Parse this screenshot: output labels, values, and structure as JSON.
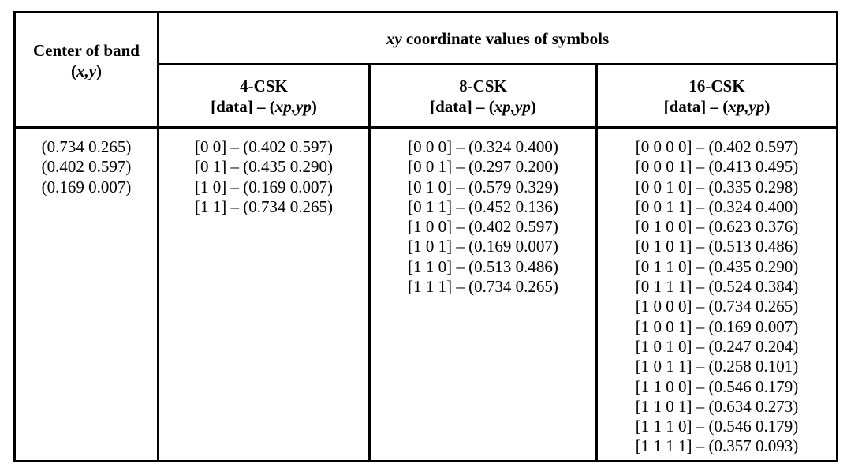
{
  "header": {
    "center_of_band": {
      "title": "Center of band",
      "coords": [
        "(",
        "x,y",
        ")"
      ]
    },
    "group_title": [
      "xy",
      "coordinate values of symbols"
    ],
    "columns": [
      {
        "title": "4-CSK",
        "subtitle": [
          "[data] – (",
          "xp,yp",
          ")"
        ]
      },
      {
        "title": "8-CSK",
        "subtitle": [
          "[data] – (",
          "xp,yp",
          ")"
        ]
      },
      {
        "title": "16-CSK",
        "subtitle": [
          "[data] – (",
          "xp,yp",
          ")"
        ]
      }
    ]
  },
  "body": {
    "center_of_band": [
      "(0.734 0.265)",
      "(0.402 0.597)",
      "(0.169 0.007)"
    ],
    "columns": [
      [
        "[0 0] – (0.402 0.597)",
        "[0 1] – (0.435 0.290)",
        "[1 0] – (0.169 0.007)",
        "[1 1] – (0.734 0.265)"
      ],
      [
        "[0 0 0] – (0.324 0.400)",
        "[0 0 1] – (0.297 0.200)",
        "[0 1 0] – (0.579 0.329)",
        "[0 1 1] – (0.452 0.136)",
        "[1 0 0] – (0.402 0.597)",
        "[1 0 1] – (0.169 0.007)",
        "[1 1 0] – (0.513 0.486)",
        "[1 1 1] – (0.734 0.265)"
      ],
      [
        "[0 0 0 0] – (0.402 0.597)",
        "[0 0 0 1] – (0.413 0.495)",
        "[0 0 1 0] – (0.335 0.298)",
        "[0 0 1 1] – (0.324 0.400)",
        "[0 1 0 0] – (0.623 0.376)",
        "[0 1 0 1] – (0.513 0.486)",
        "[0 1 1 0] – (0.435 0.290)",
        "[0 1 1 1] – (0.524 0.384)",
        "[1 0 0 0] – (0.734 0.265)",
        "[1 0 0 1] – (0.169 0.007)",
        "[1 0 1 0] – (0.247 0.204)",
        "[1 0 1 1] – (0.258 0.101)",
        "[1 1 0 0] – (0.546 0.179)",
        "[1 1 0 1] – (0.634 0.273)",
        "[1 1 1 0] – (0.546 0.179)",
        "[1 1 1 1] – (0.357 0.093)"
      ]
    ]
  }
}
